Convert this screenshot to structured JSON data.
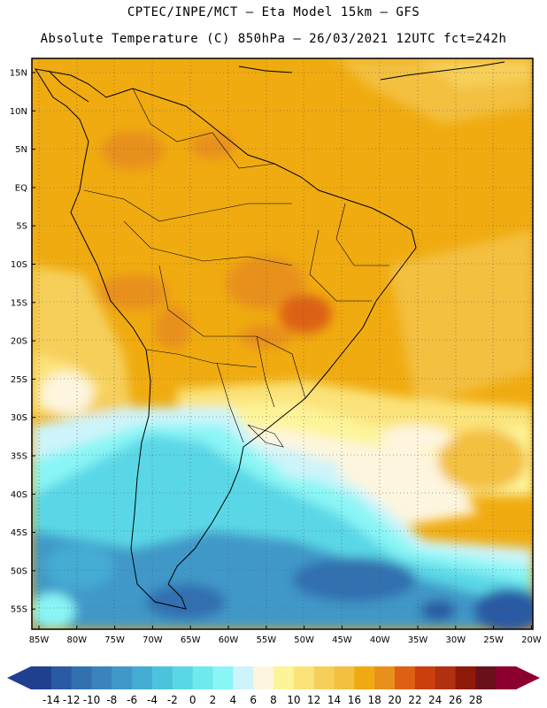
{
  "header": {
    "line1": "CPTEC/INPE/MCT –  Eta Model 15km – GFS",
    "line2": "Absolute Temperature (C) 850hPa – 26/03/2021 12UTC fct=242h"
  },
  "axes": {
    "lat_labels": [
      "15N",
      "10N",
      "5N",
      "EQ",
      "5S",
      "10S",
      "15S",
      "20S",
      "25S",
      "30S",
      "35S",
      "40S",
      "45S",
      "50S",
      "55S"
    ],
    "lon_labels": [
      "85W",
      "80W",
      "75W",
      "70W",
      "65W",
      "60W",
      "55W",
      "50W",
      "45W",
      "40W",
      "35W",
      "30W",
      "25W",
      "20W"
    ]
  },
  "colorbar": {
    "labels": [
      "-14",
      "-12",
      "-10",
      "-8",
      "-6",
      "-4",
      "-2",
      "0",
      "2",
      "4",
      "6",
      "8",
      "10",
      "12",
      "14",
      "16",
      "18",
      "20",
      "22",
      "24",
      "26",
      "28"
    ],
    "colors": [
      "#1f3f8f",
      "#2a5aa3",
      "#3270b0",
      "#3a84bd",
      "#3f98c8",
      "#45acd3",
      "#4cc3dd",
      "#5ad7e6",
      "#6ee9ee",
      "#8af5f5",
      "#cdf4fa",
      "#fdf5de",
      "#fdf49a",
      "#fbe37a",
      "#f6cf5a",
      "#f3c040",
      "#eeaa10",
      "#e8901c",
      "#dd6014",
      "#cb3e0e",
      "#b03010",
      "#8f1a0a",
      "#6a0f1c",
      "#8c0030"
    ],
    "under_color": "#1f3f8f",
    "over_color": "#8c0030"
  }
}
